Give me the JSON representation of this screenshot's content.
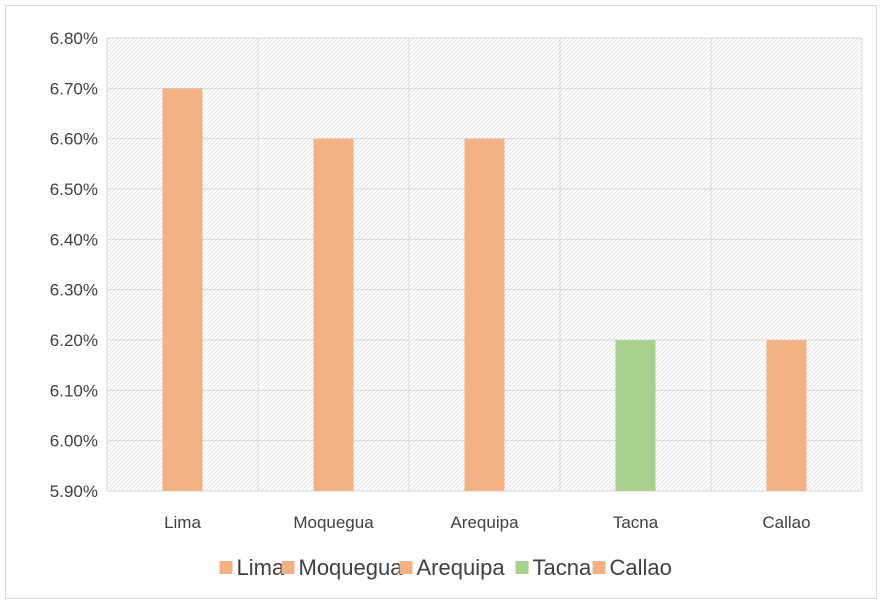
{
  "chart_data": {
    "type": "bar",
    "categories": [
      "Lima",
      "Moquegua",
      "Arequipa",
      "Tacna",
      "Callao"
    ],
    "values": [
      0.067,
      0.066,
      0.066,
      0.062,
      0.062
    ],
    "bar_colors": [
      "#F4B183",
      "#F4B183",
      "#F4B183",
      "#A9D18E",
      "#F4B183"
    ],
    "ylim": [
      0.059,
      0.068
    ],
    "ytick_step": 0.001,
    "ytick_labels": [
      "5.90%",
      "6.00%",
      "6.10%",
      "6.20%",
      "6.30%",
      "6.40%",
      "6.50%",
      "6.60%",
      "6.70%",
      "6.80%"
    ],
    "title": "",
    "xlabel": "",
    "ylabel": "",
    "grid": true,
    "plot_background": "hatched",
    "legend": {
      "position": "bottom",
      "entries": [
        {
          "label": "Lima",
          "color": "#F4B183"
        },
        {
          "label": "Moquegua",
          "color": "#F4B183"
        },
        {
          "label": "Arequipa",
          "color": "#F4B183"
        },
        {
          "label": "Tacna",
          "color": "#A9D18E"
        },
        {
          "label": "Callao",
          "color": "#F4B183"
        }
      ]
    }
  }
}
